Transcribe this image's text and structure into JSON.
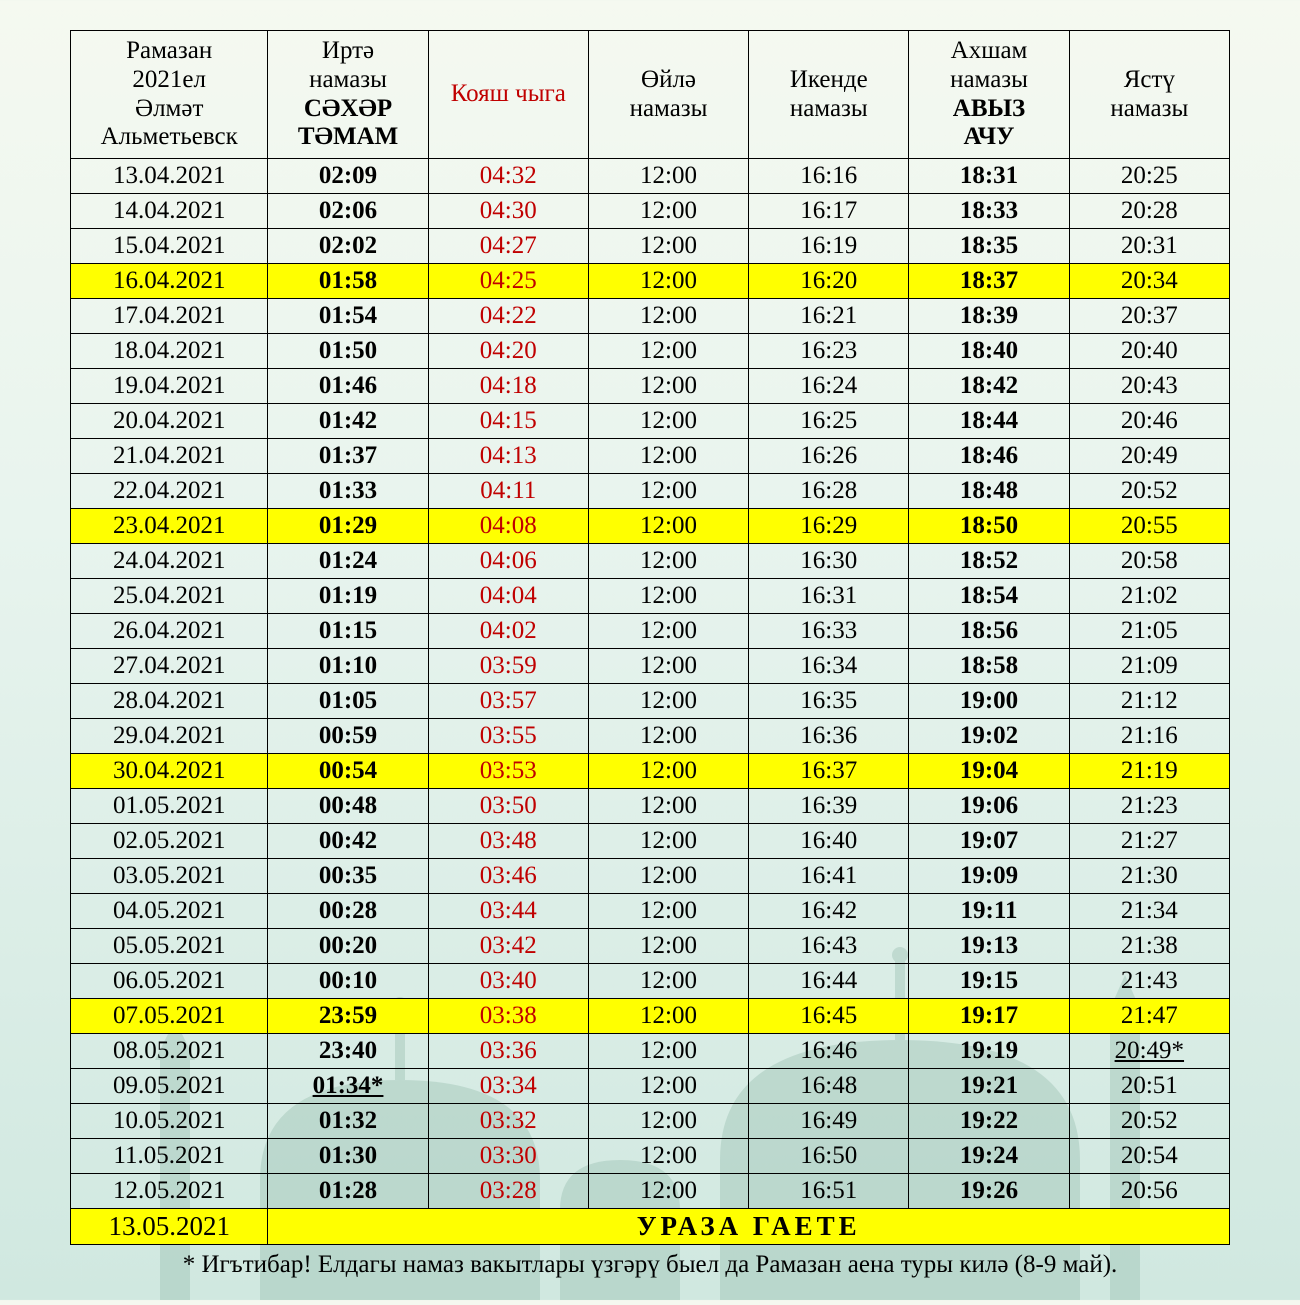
{
  "background_colors": {
    "top": "#f5f9f0",
    "bottom": "#d0e8e0",
    "mosque": "#8fb8a8"
  },
  "table": {
    "border_color": "#000000",
    "highlight_color": "#ffff00",
    "red_color": "#c00000",
    "font_family": "Times New Roman",
    "header_fontsize": 25,
    "cell_fontsize": 25
  },
  "headers": {
    "date": [
      "Рамазан",
      "2021ел",
      "Әлмәт",
      "Альметьевск"
    ],
    "col2": [
      "Иртә",
      "намазы",
      "СӘХӘР",
      "ТӘМАМ"
    ],
    "col3": [
      "Кояш чыга"
    ],
    "col4": [
      "Өйлә",
      "намазы"
    ],
    "col5": [
      "Икенде",
      "намазы"
    ],
    "col6": [
      "Ахшам",
      "намазы",
      "АВЫЗ",
      "АЧУ"
    ],
    "col7": [
      "Ястү",
      "намазы"
    ]
  },
  "rows": [
    {
      "date": "13.04.2021",
      "c2": "02:09",
      "c3": "04:32",
      "c4": "12:00",
      "c5": "16:16",
      "c6": "18:31",
      "c7": "20:25",
      "hl": false
    },
    {
      "date": "14.04.2021",
      "c2": "02:06",
      "c3": "04:30",
      "c4": "12:00",
      "c5": "16:17",
      "c6": "18:33",
      "c7": "20:28",
      "hl": false
    },
    {
      "date": "15.04.2021",
      "c2": "02:02",
      "c3": "04:27",
      "c4": "12:00",
      "c5": "16:19",
      "c6": "18:35",
      "c7": "20:31",
      "hl": false
    },
    {
      "date": "16.04.2021",
      "c2": "01:58",
      "c3": "04:25",
      "c4": "12:00",
      "c5": "16:20",
      "c6": "18:37",
      "c7": "20:34",
      "hl": true
    },
    {
      "date": "17.04.2021",
      "c2": "01:54",
      "c3": "04:22",
      "c4": "12:00",
      "c5": "16:21",
      "c6": "18:39",
      "c7": "20:37",
      "hl": false
    },
    {
      "date": "18.04.2021",
      "c2": "01:50",
      "c3": "04:20",
      "c4": "12:00",
      "c5": "16:23",
      "c6": "18:40",
      "c7": "20:40",
      "hl": false
    },
    {
      "date": "19.04.2021",
      "c2": "01:46",
      "c3": "04:18",
      "c4": "12:00",
      "c5": "16:24",
      "c6": "18:42",
      "c7": "20:43",
      "hl": false
    },
    {
      "date": "20.04.2021",
      "c2": "01:42",
      "c3": "04:15",
      "c4": "12:00",
      "c5": "16:25",
      "c6": "18:44",
      "c7": "20:46",
      "hl": false
    },
    {
      "date": "21.04.2021",
      "c2": "01:37",
      "c3": "04:13",
      "c4": "12:00",
      "c5": "16:26",
      "c6": "18:46",
      "c7": "20:49",
      "hl": false
    },
    {
      "date": "22.04.2021",
      "c2": "01:33",
      "c3": "04:11",
      "c4": "12:00",
      "c5": "16:28",
      "c6": "18:48",
      "c7": "20:52",
      "hl": false
    },
    {
      "date": "23.04.2021",
      "c2": "01:29",
      "c3": "04:08",
      "c4": "12:00",
      "c5": "16:29",
      "c6": "18:50",
      "c7": "20:55",
      "hl": true
    },
    {
      "date": "24.04.2021",
      "c2": "01:24",
      "c3": "04:06",
      "c4": "12:00",
      "c5": "16:30",
      "c6": "18:52",
      "c7": "20:58",
      "hl": false
    },
    {
      "date": "25.04.2021",
      "c2": "01:19",
      "c3": "04:04",
      "c4": "12:00",
      "c5": "16:31",
      "c6": "18:54",
      "c7": "21:02",
      "hl": false
    },
    {
      "date": "26.04.2021",
      "c2": "01:15",
      "c3": "04:02",
      "c4": "12:00",
      "c5": "16:33",
      "c6": "18:56",
      "c7": "21:05",
      "hl": false
    },
    {
      "date": "27.04.2021",
      "c2": "01:10",
      "c3": "03:59",
      "c4": "12:00",
      "c5": "16:34",
      "c6": "18:58",
      "c7": "21:09",
      "hl": false
    },
    {
      "date": "28.04.2021",
      "c2": "01:05",
      "c3": "03:57",
      "c4": "12:00",
      "c5": "16:35",
      "c6": "19:00",
      "c7": "21:12",
      "hl": false
    },
    {
      "date": "29.04.2021",
      "c2": "00:59",
      "c3": "03:55",
      "c4": "12:00",
      "c5": "16:36",
      "c6": "19:02",
      "c7": "21:16",
      "hl": false
    },
    {
      "date": "30.04.2021",
      "c2": "00:54",
      "c3": "03:53",
      "c4": "12:00",
      "c5": "16:37",
      "c6": "19:04",
      "c7": "21:19",
      "hl": true
    },
    {
      "date": "01.05.2021",
      "c2": "00:48",
      "c3": "03:50",
      "c4": "12:00",
      "c5": "16:39",
      "c6": "19:06",
      "c7": "21:23",
      "hl": false
    },
    {
      "date": "02.05.2021",
      "c2": "00:42",
      "c3": "03:48",
      "c4": "12:00",
      "c5": "16:40",
      "c6": "19:07",
      "c7": "21:27",
      "hl": false
    },
    {
      "date": "03.05.2021",
      "c2": "00:35",
      "c3": "03:46",
      "c4": "12:00",
      "c5": "16:41",
      "c6": "19:09",
      "c7": "21:30",
      "hl": false
    },
    {
      "date": "04.05.2021",
      "c2": "00:28",
      "c3": "03:44",
      "c4": "12:00",
      "c5": "16:42",
      "c6": "19:11",
      "c7": "21:34",
      "hl": false
    },
    {
      "date": "05.05.2021",
      "c2": "00:20",
      "c3": "03:42",
      "c4": "12:00",
      "c5": "16:43",
      "c6": "19:13",
      "c7": "21:38",
      "hl": false
    },
    {
      "date": "06.05.2021",
      "c2": "00:10",
      "c3": "03:40",
      "c4": "12:00",
      "c5": "16:44",
      "c6": "19:15",
      "c7": "21:43",
      "hl": false
    },
    {
      "date": "07.05.2021",
      "c2": "23:59",
      "c3": "03:38",
      "c4": "12:00",
      "c5": "16:45",
      "c6": "19:17",
      "c7": "21:47",
      "hl": true
    },
    {
      "date": "08.05.2021",
      "c2": "23:40",
      "c3": "03:36",
      "c4": "12:00",
      "c5": "16:46",
      "c6": "19:19",
      "c7": "20:49*",
      "hl": false,
      "c7_underline": true
    },
    {
      "date": "09.05.2021",
      "c2": "01:34*",
      "c3": "03:34",
      "c4": "12:00",
      "c5": "16:48",
      "c6": "19:21",
      "c7": "20:51",
      "hl": false,
      "c2_underline": true
    },
    {
      "date": "10.05.2021",
      "c2": "01:32",
      "c3": "03:32",
      "c4": "12:00",
      "c5": "16:49",
      "c6": "19:22",
      "c7": "20:52",
      "hl": false
    },
    {
      "date": "11.05.2021",
      "c2": "01:30",
      "c3": "03:30",
      "c4": "12:00",
      "c5": "16:50",
      "c6": "19:24",
      "c7": "20:54",
      "hl": false
    },
    {
      "date": "12.05.2021",
      "c2": "01:28",
      "c3": "03:28",
      "c4": "12:00",
      "c5": "16:51",
      "c6": "19:26",
      "c7": "20:56",
      "hl": false
    }
  ],
  "footer": {
    "date": "13.05.2021",
    "text": "УРАЗА   ГАЕТЕ"
  },
  "footnote": "* Игътибар! Елдагы намаз вакытлары үзгәрү быел да Рамазан аена туры килә (8-9 май)."
}
